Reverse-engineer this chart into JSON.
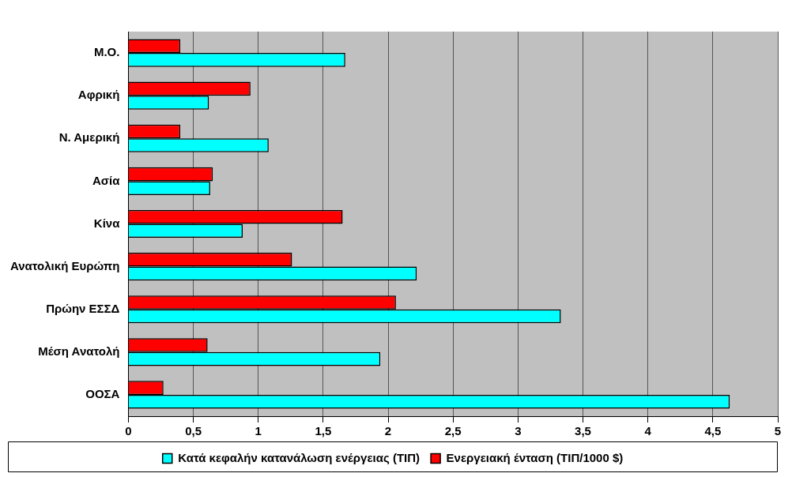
{
  "chart_data": {
    "type": "bar",
    "orientation": "horizontal",
    "categories": [
      "Μ.Ο.",
      "Αφρική",
      "Ν. Αμερική",
      "Ασία",
      "Κίνα",
      "Ανατολική Ευρώπη",
      "Πρώην ΕΣΣΔ",
      "Μέση Ανατολή",
      "ΟΟΣΑ"
    ],
    "series": [
      {
        "name": "Κατά κεφαλήν κατανάλωση ενέργειας (ΤΙΠ)",
        "color": "#00ffff",
        "values": [
          1.67,
          0.62,
          1.08,
          0.63,
          0.88,
          2.22,
          3.33,
          1.94,
          4.63
        ]
      },
      {
        "name": "Ενεργειακή ένταση (ΤΙΠ/1000 $)",
        "color": "#ff0000",
        "values": [
          0.4,
          0.94,
          0.4,
          0.65,
          1.65,
          1.26,
          2.06,
          0.61,
          0.27
        ]
      }
    ],
    "xlim": [
      0,
      5
    ],
    "xticks": [
      0,
      {
        "value": 0.5,
        "label": "0,5"
      },
      1,
      {
        "value": 1.5,
        "label": "1,5"
      },
      2,
      {
        "value": 2.5,
        "label": "2,5"
      },
      3,
      {
        "value": 3.5,
        "label": "3,5"
      },
      4,
      {
        "value": 4.5,
        "label": "4,5"
      },
      5
    ],
    "grid": "x",
    "legend": "bottom"
  }
}
